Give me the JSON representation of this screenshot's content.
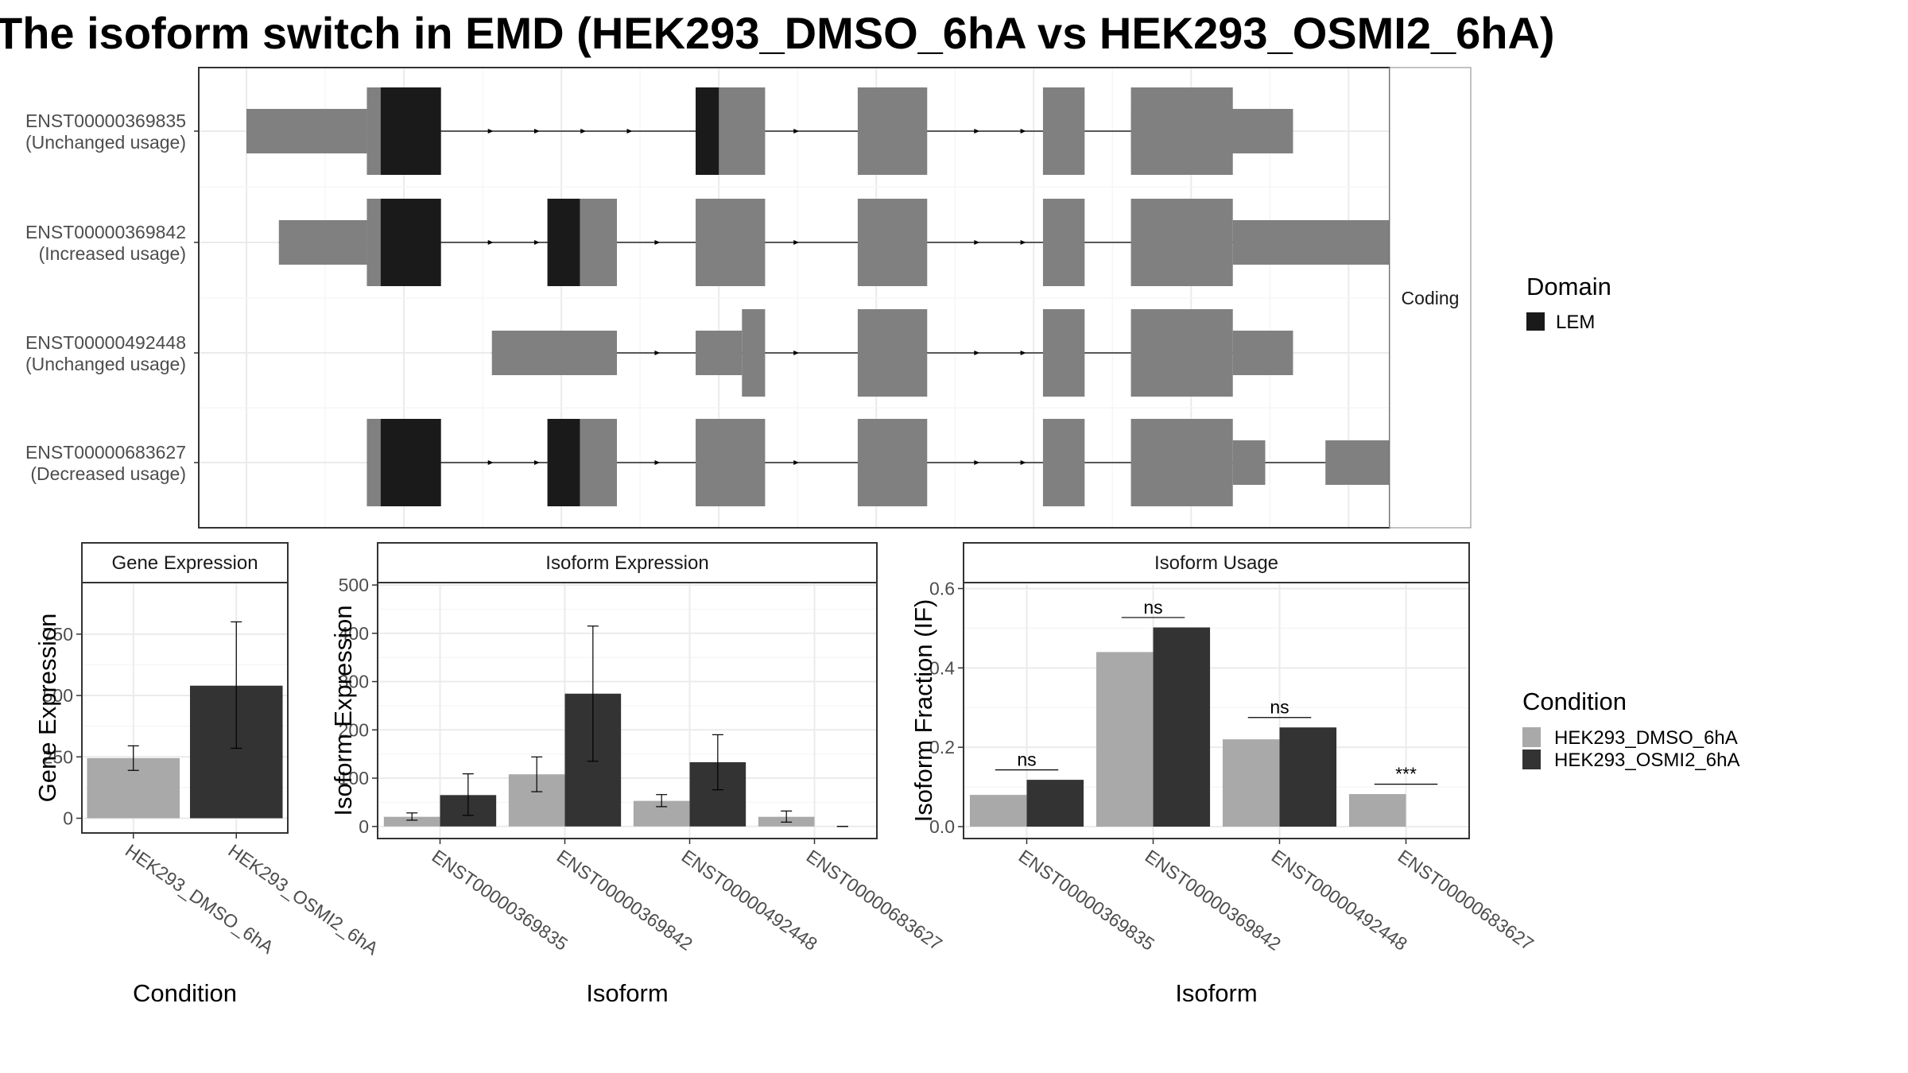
{
  "title": "The isoform switch in EMD (HEK293_DMSO_6hA vs HEK293_OSMI2_6hA)",
  "colors": {
    "exon": "#808080",
    "domain": "#1a1a1a",
    "dmso": "#a9a9a9",
    "osmi2": "#333333",
    "panel_border": "#333333",
    "strip_fill": "#ffffff",
    "grid": "#ebebeb"
  },
  "chart_data": [
    {
      "type": "gene-structure",
      "strip_label": "Coding",
      "legend": {
        "title": "Domain",
        "items": [
          {
            "label": "LEM",
            "color": "#1a1a1a"
          }
        ]
      },
      "transcripts": [
        {
          "id": "ENST00000369835",
          "usage": "(Unchanged usage)",
          "utr": [
            [
              0,
              130
            ],
            [
              955,
              1130
            ]
          ],
          "cds": [
            [
              130,
              210
            ],
            [
              485,
              560
            ],
            [
              660,
              735
            ],
            [
              860,
              905
            ],
            [
              955,
              1065
            ]
          ],
          "domains": [
            [
              145,
              210
            ],
            [
              485,
              510
            ]
          ],
          "arrows": [
            265,
            315,
            365,
            415,
            595,
            690,
            790,
            840
          ]
        },
        {
          "id": "ENST00000369842",
          "usage": "(Increased usage)",
          "utr": [
            [
              35,
              130
            ],
            [
              1065,
              1240
            ]
          ],
          "cds": [
            [
              130,
              210
            ],
            [
              325,
              400
            ],
            [
              485,
              560
            ],
            [
              660,
              735
            ],
            [
              860,
              905
            ],
            [
              955,
              1065
            ]
          ],
          "domains": [
            [
              145,
              210
            ],
            [
              325,
              360
            ]
          ],
          "arrows": [
            265,
            315,
            445,
            595,
            690,
            790,
            840
          ]
        },
        {
          "id": "ENST00000492448",
          "usage": "(Unchanged usage)",
          "utr": [
            [
              265,
              400
            ],
            [
              485,
              535
            ],
            [
              1065,
              1130
            ]
          ],
          "cds": [
            [
              535,
              560
            ],
            [
              660,
              735
            ],
            [
              860,
              905
            ],
            [
              955,
              1065
            ]
          ],
          "domains": [],
          "arrows": [
            445,
            595,
            690,
            790,
            840
          ]
        },
        {
          "id": "ENST00000683627",
          "usage": "(Decreased usage)",
          "utr": [
            [
              1065,
              1100
            ],
            [
              1165,
              1240
            ]
          ],
          "cds": [
            [
              130,
              210
            ],
            [
              325,
              400
            ],
            [
              485,
              560
            ],
            [
              660,
              735
            ],
            [
              860,
              905
            ],
            [
              955,
              1065
            ]
          ],
          "domains": [
            [
              145,
              210
            ],
            [
              325,
              360
            ]
          ],
          "arrows": [
            265,
            315,
            445,
            595,
            690,
            790,
            840
          ]
        }
      ]
    },
    {
      "type": "bar",
      "panel_title": "Gene Expression",
      "xlabel": "Condition",
      "ylabel": "Gene Expression",
      "ylim": [
        -60,
        960
      ],
      "yticks": [
        0,
        250,
        500,
        750
      ],
      "categories": [
        "HEK293_DMSO_6hA",
        "HEK293_OSMI2_6hA"
      ],
      "values": [
        245,
        540
      ],
      "errors": [
        [
          195,
          295
        ],
        [
          285,
          800
        ]
      ]
    },
    {
      "type": "bar",
      "panel_title": "Isoform Expression",
      "xlabel": "Isoform",
      "ylabel": "Isoform Expression",
      "ylim": [
        -25,
        505
      ],
      "yticks": [
        0,
        100,
        200,
        300,
        400,
        500
      ],
      "categories": [
        "ENST00000369835",
        "ENST00000369842",
        "ENST00000492448",
        "ENST00000683627"
      ],
      "series": [
        {
          "name": "HEK293_DMSO_6hA",
          "values": [
            20,
            108,
            53,
            20
          ],
          "errors": [
            [
              13,
              28
            ],
            [
              72,
              144
            ],
            [
              41,
              66
            ],
            [
              9,
              32
            ]
          ]
        },
        {
          "name": "HEK293_OSMI2_6hA",
          "values": [
            65,
            275,
            133,
            0
          ],
          "errors": [
            [
              23,
              109
            ],
            [
              135,
              415
            ],
            [
              76,
              190
            ],
            [
              0,
              0
            ]
          ]
        }
      ]
    },
    {
      "type": "bar",
      "panel_title": "Isoform Usage",
      "xlabel": "Isoform",
      "ylabel": "Isoform Fraction (IF)",
      "ylim": [
        -0.03,
        0.615
      ],
      "yticks": [
        "0.0",
        "0.2",
        "0.4",
        "0.6"
      ],
      "categories": [
        "ENST00000369835",
        "ENST00000369842",
        "ENST00000492448",
        "ENST00000683627"
      ],
      "series": [
        {
          "name": "HEK293_DMSO_6hA",
          "values": [
            0.08,
            0.44,
            0.22,
            0.082
          ]
        },
        {
          "name": "HEK293_OSMI2_6hA",
          "values": [
            0.118,
            0.502,
            0.25,
            0.0
          ]
        }
      ],
      "significance": [
        "ns",
        "ns",
        "ns",
        "***"
      ],
      "significance_y": [
        0.143,
        0.527,
        0.275,
        0.107
      ]
    }
  ],
  "legend_condition": {
    "title": "Condition",
    "items": [
      {
        "label": "HEK293_DMSO_6hA",
        "color": "#a9a9a9"
      },
      {
        "label": "HEK293_OSMI2_6hA",
        "color": "#333333"
      }
    ]
  }
}
